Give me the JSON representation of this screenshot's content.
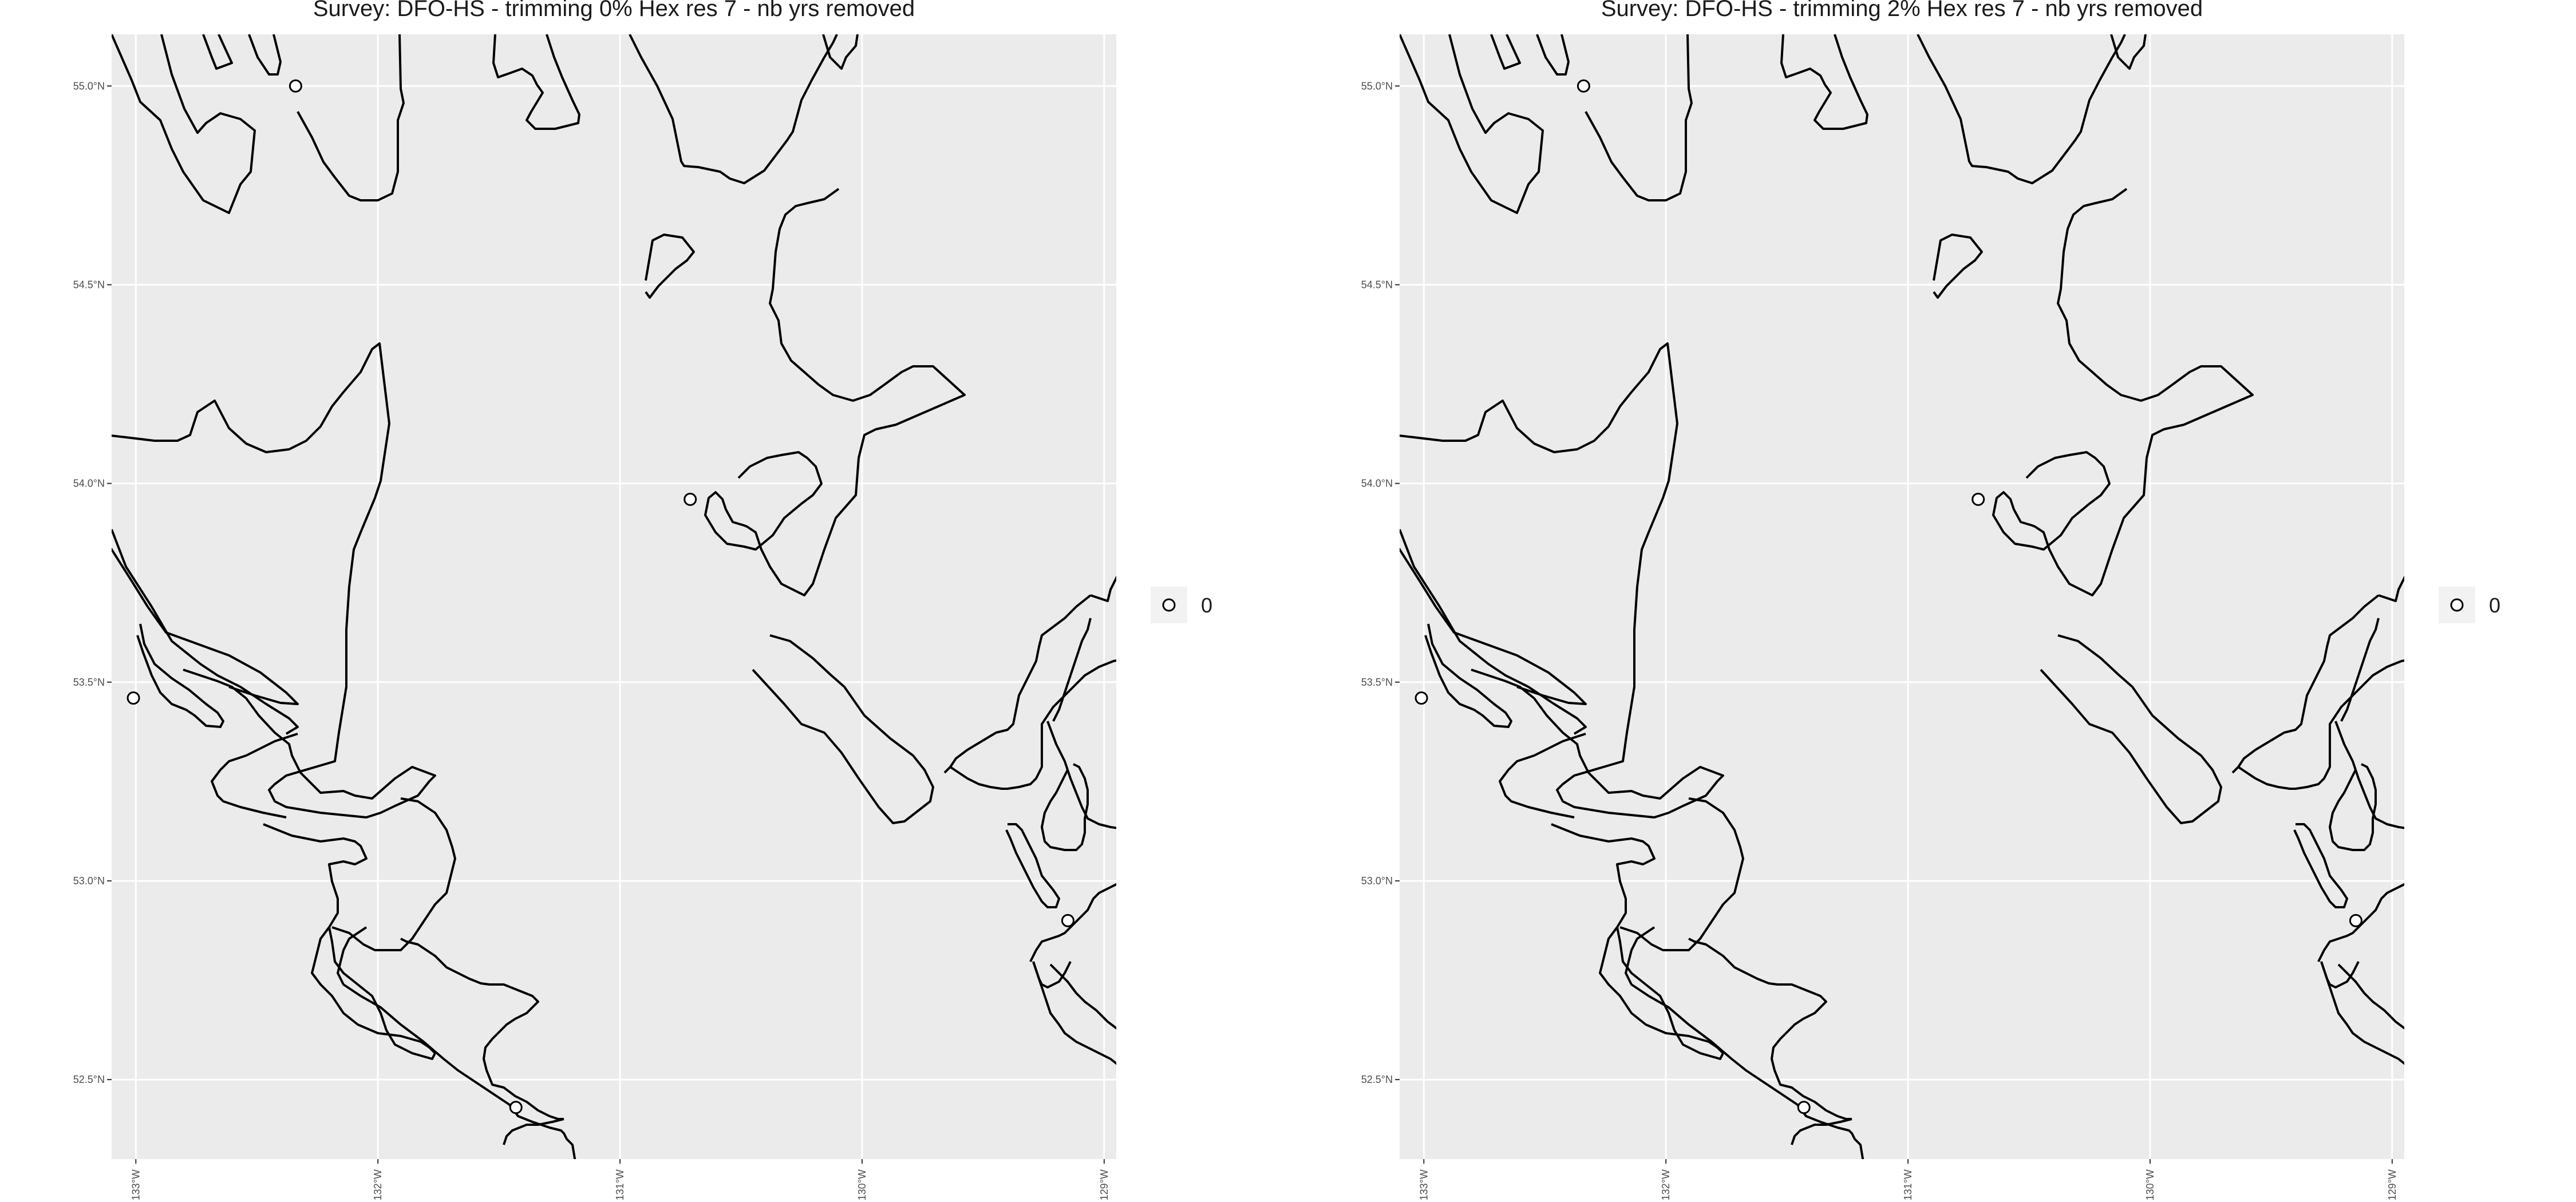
{
  "colors": {
    "panel_background": "#EBEBEB",
    "grid": "#FFFFFF",
    "coastline": "#000000",
    "point_fill": "#FFFFFF",
    "point_stroke": "#000000",
    "legend_key_background": "#F2F2F2"
  },
  "chart_data": [
    {
      "type": "scatter",
      "subtype": "map",
      "title": "Survey: DFO-HS - trimming 0% Hex res 7 - nb yrs removed",
      "xlabel": "",
      "ylabel": "",
      "xlim": [
        -133.1,
        -128.95
      ],
      "ylim": [
        52.3,
        55.13
      ],
      "xticks": [
        -133,
        -132,
        -131,
        -130,
        -129
      ],
      "xtick_labels": [
        "133°W",
        "132°W",
        "131°W",
        "130°W",
        "129°W"
      ],
      "yticks": [
        52.5,
        53.0,
        53.5,
        54.0,
        54.5,
        55.0
      ],
      "ytick_labels": [
        "52.5°N",
        "53.0°N",
        "53.5°N",
        "54.0°N",
        "54.5°N",
        "55.0°N"
      ],
      "grid": true,
      "legend": {
        "placement": "right",
        "entries": [
          "0"
        ]
      },
      "series": [
        {
          "name": "0",
          "points": [
            {
              "lon": -132.34,
              "lat": 55.0
            },
            {
              "lon": -133.01,
              "lat": 53.46
            },
            {
              "lon": -130.71,
              "lat": 53.96
            },
            {
              "lon": -131.43,
              "lat": 52.43
            },
            {
              "lon": -129.15,
              "lat": 52.9
            }
          ]
        }
      ]
    },
    {
      "type": "scatter",
      "subtype": "map",
      "title": "Survey: DFO-HS - trimming 2% Hex res 7 - nb yrs removed",
      "xlabel": "",
      "ylabel": "",
      "xlim": [
        -133.1,
        -128.95
      ],
      "ylim": [
        52.3,
        55.13
      ],
      "xticks": [
        -133,
        -132,
        -131,
        -130,
        -129
      ],
      "xtick_labels": [
        "133°W",
        "132°W",
        "131°W",
        "130°W",
        "129°W"
      ],
      "yticks": [
        52.5,
        53.0,
        53.5,
        54.0,
        54.5,
        55.0
      ],
      "ytick_labels": [
        "52.5°N",
        "53.0°N",
        "53.5°N",
        "54.0°N",
        "54.5°N",
        "55.0°N"
      ],
      "grid": true,
      "legend": {
        "placement": "right",
        "entries": [
          "0"
        ]
      },
      "series": [
        {
          "name": "0",
          "points": [
            {
              "lon": -132.34,
              "lat": 55.0
            },
            {
              "lon": -133.01,
              "lat": 53.46
            },
            {
              "lon": -130.71,
              "lat": 53.96
            },
            {
              "lon": -131.43,
              "lat": 52.43
            },
            {
              "lon": -129.15,
              "lat": 52.9
            }
          ]
        }
      ]
    }
  ]
}
